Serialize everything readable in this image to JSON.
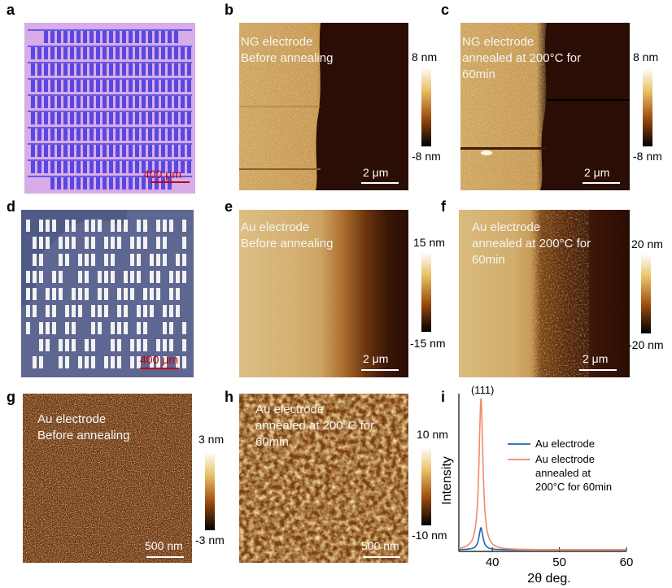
{
  "panels": {
    "a": {
      "label": "a",
      "scalebar": "400 μm"
    },
    "b": {
      "label": "b",
      "overlay": "NG electrode\nBefore annealing",
      "cmax": "8 nm",
      "cmin": "-8 nm",
      "scalebar": "2 μm"
    },
    "c": {
      "label": "c",
      "overlay": "NG electrode\nannealed at 200°C for\n60min",
      "cmax": "8 nm",
      "cmin": "-8 nm",
      "scalebar": "2 μm"
    },
    "d": {
      "label": "d",
      "scalebar": "400 μm"
    },
    "e": {
      "label": "e",
      "overlay": "Au electrode\nBefore annealing",
      "cmax": "15 nm",
      "cmin": "-15 nm",
      "scalebar": "2 μm"
    },
    "f": {
      "label": "f",
      "overlay": "Au electrode\nannealed at 200°C for\n60min",
      "cmax": "20 nm",
      "cmin": "-20 nm",
      "scalebar": "2 μm"
    },
    "g": {
      "label": "g",
      "overlay": "Au electrode\nBefore annealing",
      "cmax": "3 nm",
      "cmin": "-3 nm",
      "scalebar": "500 nm"
    },
    "h": {
      "label": "h",
      "overlay": "Au electrode\nannealed at 200°C for\n60min",
      "cmax": "10 nm",
      "cmin": "-10 nm",
      "scalebar": "500 nm"
    },
    "i": {
      "label": "i"
    }
  },
  "colors": {
    "afm_light": "#f2d68a",
    "afm_dark": "#2a0d03",
    "wafer": "#d7a8e8",
    "stripe": "#5a4be0"
  },
  "chart_data": {
    "type": "line",
    "xlabel": "2θ deg.",
    "ylabel": "Intensity",
    "xlim": [
      35,
      60
    ],
    "xticks": [
      40,
      50,
      60
    ],
    "ylim": [
      0,
      1
    ],
    "peak_label": "(111)",
    "legend_position": "top-right",
    "series": [
      {
        "name": "Au electrode",
        "color": "#1f63b5",
        "peak_x": 38.3,
        "peak_y": 0.14
      },
      {
        "name": "Au electrode annealed at 200°C for 60min",
        "color": "#f58a66",
        "peak_x": 38.3,
        "peak_y": 0.96
      }
    ]
  }
}
